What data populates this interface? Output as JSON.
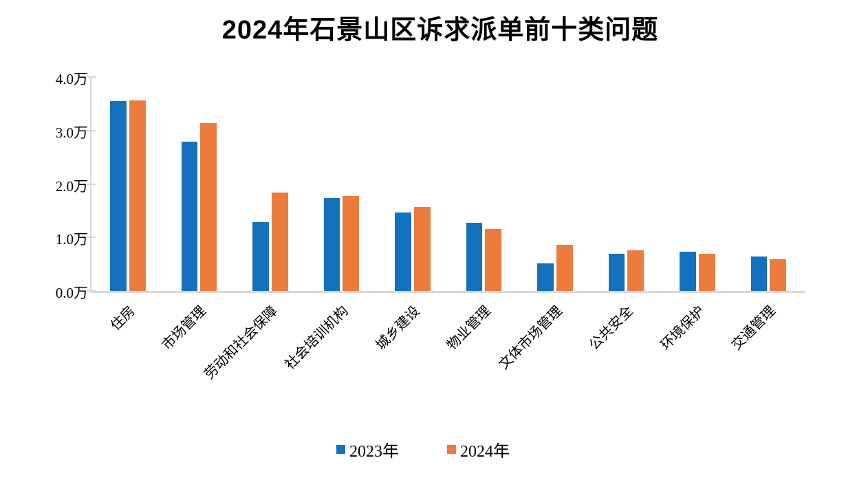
{
  "chart_data": {
    "type": "bar",
    "title": "2024年石景山区诉求派单前十类问题",
    "categories": [
      "住房",
      "市场管理",
      "劳动和社会保障",
      "社会培训机构",
      "城乡建设",
      "物业管理",
      "文体市场管理",
      "公共安全",
      "环境保护",
      "交通管理"
    ],
    "series": [
      {
        "name": "2023年",
        "color": "#1371bd",
        "values": [
          3.55,
          2.79,
          1.29,
          1.74,
          1.47,
          1.27,
          0.52,
          0.69,
          0.73,
          0.64
        ]
      },
      {
        "name": "2024年",
        "color": "#eb7c3d",
        "values": [
          3.57,
          3.14,
          1.84,
          1.77,
          1.57,
          1.16,
          0.86,
          0.76,
          0.7,
          0.59
        ]
      }
    ],
    "unit": "万",
    "ylim": [
      0,
      4
    ],
    "y_ticks": [
      {
        "label": "4.0万",
        "value": 4
      },
      {
        "label": "3.0万",
        "value": 3
      },
      {
        "label": "2.0万",
        "value": 2
      },
      {
        "label": "1.0万",
        "value": 1
      },
      {
        "label": "0.0万",
        "value": 0
      }
    ],
    "grid": false,
    "legend_position": "bottom",
    "axis_color": "#d9d9d9"
  }
}
